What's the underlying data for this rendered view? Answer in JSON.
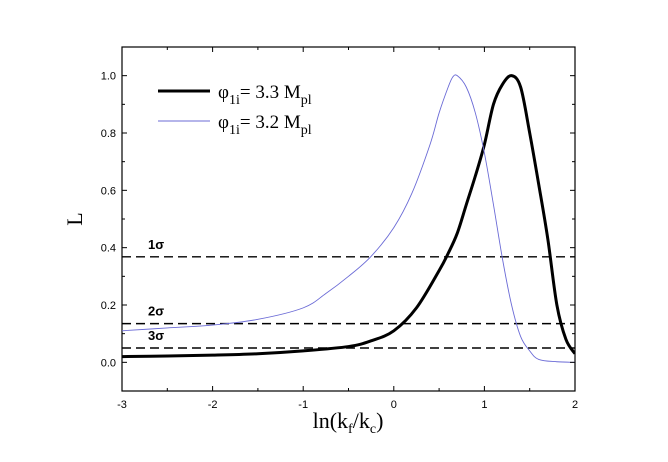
{
  "chart_data": {
    "type": "line",
    "xlabel": "ln(k_f/k_c)",
    "ylabel": "L",
    "xlim": [
      -3,
      2
    ],
    "ylim": [
      -0.1,
      1.1
    ],
    "xticks": [
      -3,
      -2,
      -1,
      0,
      1,
      2
    ],
    "yticks": [
      0.0,
      0.2,
      0.4,
      0.6,
      0.8,
      1.0
    ],
    "xtick_labels": [
      "-3",
      "-2",
      "-1",
      "0",
      "1",
      "2"
    ],
    "ytick_labels": [
      "0.0",
      "0.2",
      "0.4",
      "0.6",
      "0.8",
      "1.0"
    ],
    "grid": false,
    "legend_position": "top-left",
    "series": [
      {
        "name": "φ1i= 3.3 Mpl",
        "name_parts": {
          "symbol": "φ",
          "sub": "1i",
          "mid": "= 3.3 M",
          "unit_sub": "pl"
        },
        "color": "#000000",
        "style": "thick",
        "x": [
          -3,
          -2.5,
          -2,
          -1.5,
          -1,
          -0.5,
          -0.25,
          0,
          0.25,
          0.5,
          0.6,
          0.7,
          0.8,
          0.9,
          1.0,
          1.1,
          1.2,
          1.3,
          1.4,
          1.5,
          1.6,
          1.7,
          1.8,
          1.9,
          2.0
        ],
        "y": [
          0.02,
          0.022,
          0.025,
          0.03,
          0.04,
          0.055,
          0.075,
          0.11,
          0.19,
          0.32,
          0.38,
          0.45,
          0.55,
          0.65,
          0.76,
          0.9,
          0.97,
          1.0,
          0.96,
          0.8,
          0.62,
          0.43,
          0.2,
          0.08,
          0.03
        ]
      },
      {
        "name": "φ1i= 3.2 Mpl",
        "name_parts": {
          "symbol": "φ",
          "sub": "1i",
          "mid": "= 3.2 M",
          "unit_sub": "pl"
        },
        "color": "#6b6bd6",
        "style": "thin",
        "x": [
          -3,
          -2.5,
          -2,
          -1.5,
          -1,
          -0.75,
          -0.5,
          -0.25,
          0,
          0.2,
          0.4,
          0.5,
          0.6,
          0.65,
          0.7,
          0.8,
          0.9,
          1.0,
          1.1,
          1.2,
          1.3,
          1.4,
          1.5,
          1.6,
          1.8,
          2.0
        ],
        "y": [
          0.11,
          0.12,
          0.13,
          0.15,
          0.19,
          0.24,
          0.3,
          0.37,
          0.47,
          0.59,
          0.76,
          0.87,
          0.96,
          0.995,
          1.0,
          0.96,
          0.87,
          0.73,
          0.55,
          0.36,
          0.2,
          0.09,
          0.04,
          0.01,
          0.002,
          0.0
        ]
      }
    ],
    "reference_lines": [
      {
        "label": "1σ",
        "y": 0.368
      },
      {
        "label": "2σ",
        "y": 0.135
      },
      {
        "label": "3σ",
        "y": 0.05
      }
    ]
  }
}
